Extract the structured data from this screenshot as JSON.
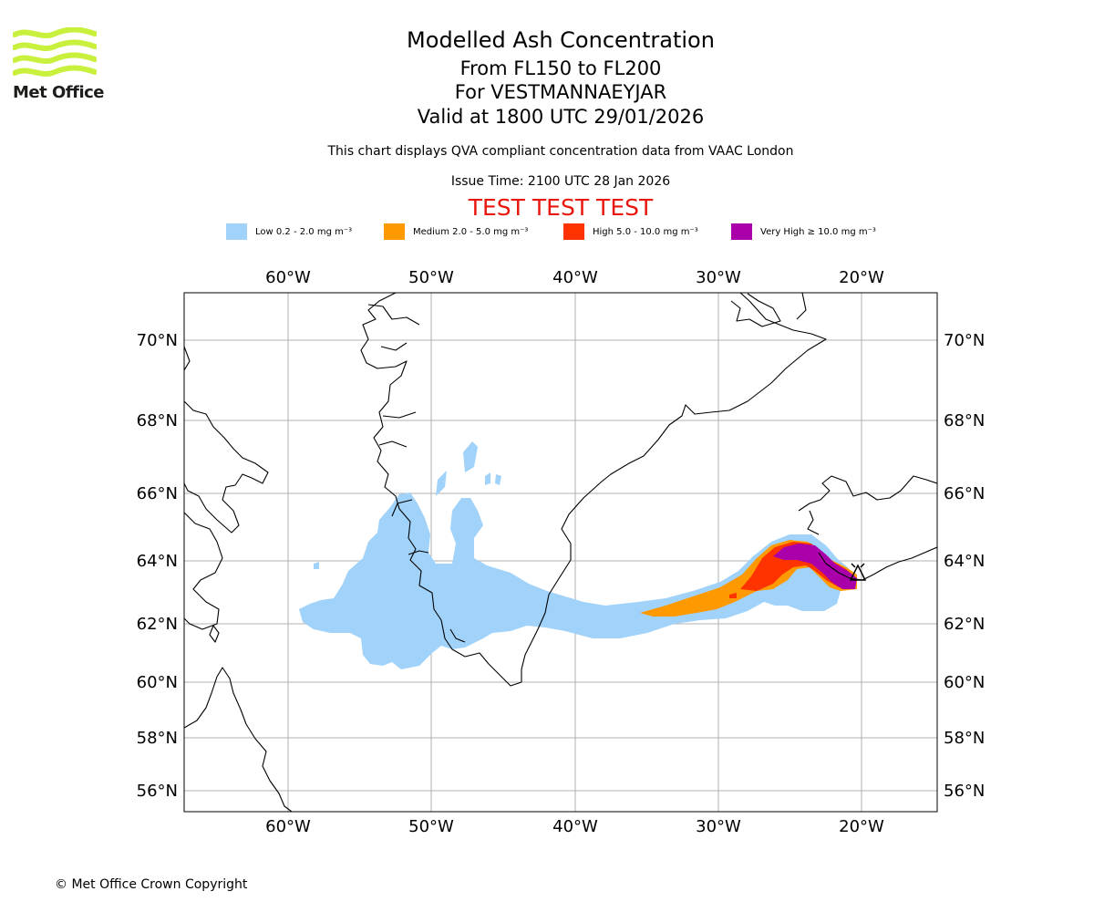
{
  "logo": {
    "text": "Met Office",
    "color": "#c8f03c"
  },
  "header": {
    "title": "Modelled Ash Concentration",
    "levels": "From FL150 to FL200",
    "volcano": "For VESTMANNAEYJAR",
    "valid": "Valid at 1800 UTC 29/01/2026",
    "description": "This chart displays QVA compliant concentration data from VAAC London",
    "issue_time": "Issue Time: 2100 UTC 28 Jan 2026",
    "warning": "TEST TEST TEST"
  },
  "legend": [
    {
      "label": "Low 0.2 - 2.0 mg m⁻³",
      "color": "#a0d2fa"
    },
    {
      "label": "Medium 2.0 - 5.0 mg m⁻³",
      "color": "#ff9900"
    },
    {
      "label": "High 5.0 - 10.0 mg m⁻³",
      "color": "#ff3300"
    },
    {
      "label": "Very High ≥ 10.0 mg m⁻³",
      "color": "#aa00aa"
    }
  ],
  "map": {
    "lon_ticks": [
      "60°W",
      "50°W",
      "40°W",
      "30°W",
      "20°W"
    ],
    "lat_ticks": [
      "70°N",
      "68°N",
      "66°N",
      "64°N",
      "62°N",
      "60°N",
      "58°N",
      "56°N"
    ],
    "grid_color": "#b0b0b0",
    "volcano_marker": "volcano-triangle-icon"
  },
  "footer": {
    "copyright": "© Met Office Crown Copyright"
  }
}
